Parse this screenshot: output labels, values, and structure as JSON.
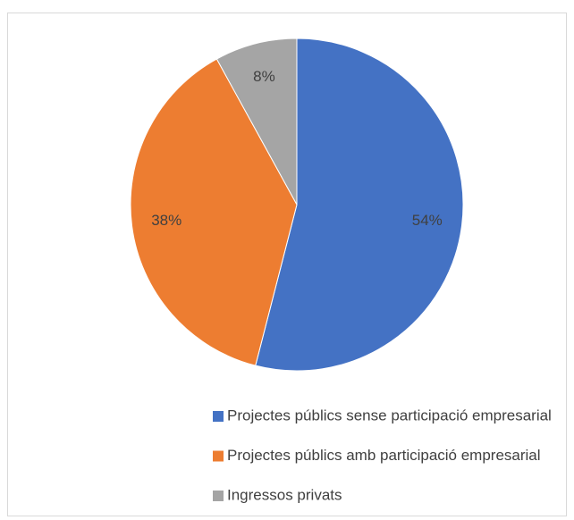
{
  "chart_data": {
    "type": "pie",
    "categories": [
      "Projectes públics sense participació empresarial",
      "Projectes públics amb participació empresarial",
      "Ingressos privats"
    ],
    "values": [
      54,
      38,
      8
    ],
    "value_labels": [
      "54%",
      "38%",
      "8%"
    ],
    "colors": [
      "#4472c4",
      "#ed7d31",
      "#a5a5a5"
    ],
    "legend": "bottom"
  }
}
